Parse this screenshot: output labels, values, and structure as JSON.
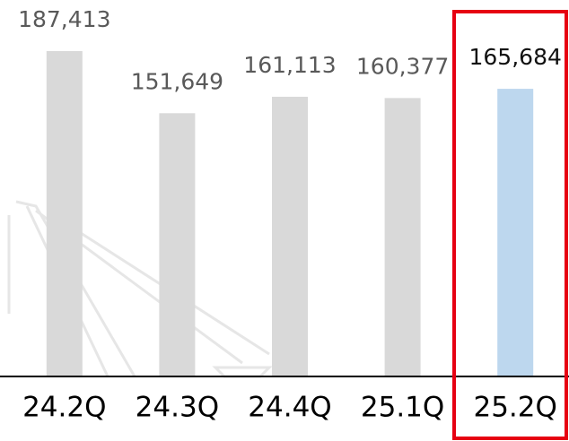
{
  "chart_data": {
    "type": "bar",
    "categories": [
      "24.2Q",
      "24.3Q",
      "24.4Q",
      "25.1Q",
      "25.2Q"
    ],
    "values": [
      187413,
      151649,
      161113,
      160377,
      165684
    ],
    "value_labels": [
      "187,413",
      "151,649",
      "161,113",
      "160,377",
      "165,684"
    ],
    "colors": [
      "#d9d9d9",
      "#d9d9d9",
      "#d9d9d9",
      "#d9d9d9",
      "#bdd7ee"
    ],
    "label_colors": [
      "#595959",
      "#595959",
      "#595959",
      "#595959",
      "#111111"
    ]
  }
}
